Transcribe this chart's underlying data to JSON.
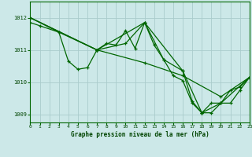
{
  "title": "Graphe pression niveau de la mer (hPa)",
  "bg_color": "#cce8e8",
  "grid_color": "#aacccc",
  "line_color": "#006600",
  "x_min": 0,
  "x_max": 23,
  "y_min": 1008.75,
  "y_max": 1012.5,
  "y_ticks": [
    1009,
    1010,
    1011,
    1012
  ],
  "x_ticks": [
    0,
    1,
    2,
    3,
    4,
    5,
    6,
    7,
    8,
    9,
    10,
    11,
    12,
    13,
    14,
    15,
    16,
    17,
    18,
    19,
    20,
    21,
    22,
    23
  ],
  "series": [
    {
      "x": [
        0,
        1,
        3,
        4,
        5,
        6,
        7,
        8,
        9,
        10,
        11,
        12,
        13,
        14,
        15,
        16,
        17,
        18,
        19,
        20,
        21,
        22,
        23
      ],
      "y": [
        1011.85,
        1011.75,
        1011.55,
        1010.65,
        1010.4,
        1010.45,
        1011.0,
        1011.2,
        1011.15,
        1011.6,
        1011.05,
        1011.85,
        1011.15,
        1010.7,
        1010.2,
        1010.05,
        1009.35,
        1009.05,
        1009.05,
        1009.35,
        1009.35,
        1009.75,
        1010.15
      ]
    },
    {
      "x": [
        0,
        7,
        12,
        16,
        20,
        23
      ],
      "y": [
        1012.0,
        1011.0,
        1010.6,
        1010.2,
        1009.55,
        1010.15
      ]
    },
    {
      "x": [
        0,
        7,
        10,
        12,
        14,
        16,
        18,
        20,
        23
      ],
      "y": [
        1012.0,
        1011.0,
        1011.2,
        1011.85,
        1010.7,
        1010.35,
        1009.05,
        1009.35,
        1010.15
      ]
    },
    {
      "x": [
        0,
        3,
        7,
        12,
        16,
        17,
        18,
        19,
        20,
        21,
        22,
        23
      ],
      "y": [
        1012.0,
        1011.55,
        1011.0,
        1011.85,
        1010.35,
        1009.4,
        1009.05,
        1009.35,
        1009.35,
        1009.75,
        1009.85,
        1010.15
      ]
    }
  ]
}
